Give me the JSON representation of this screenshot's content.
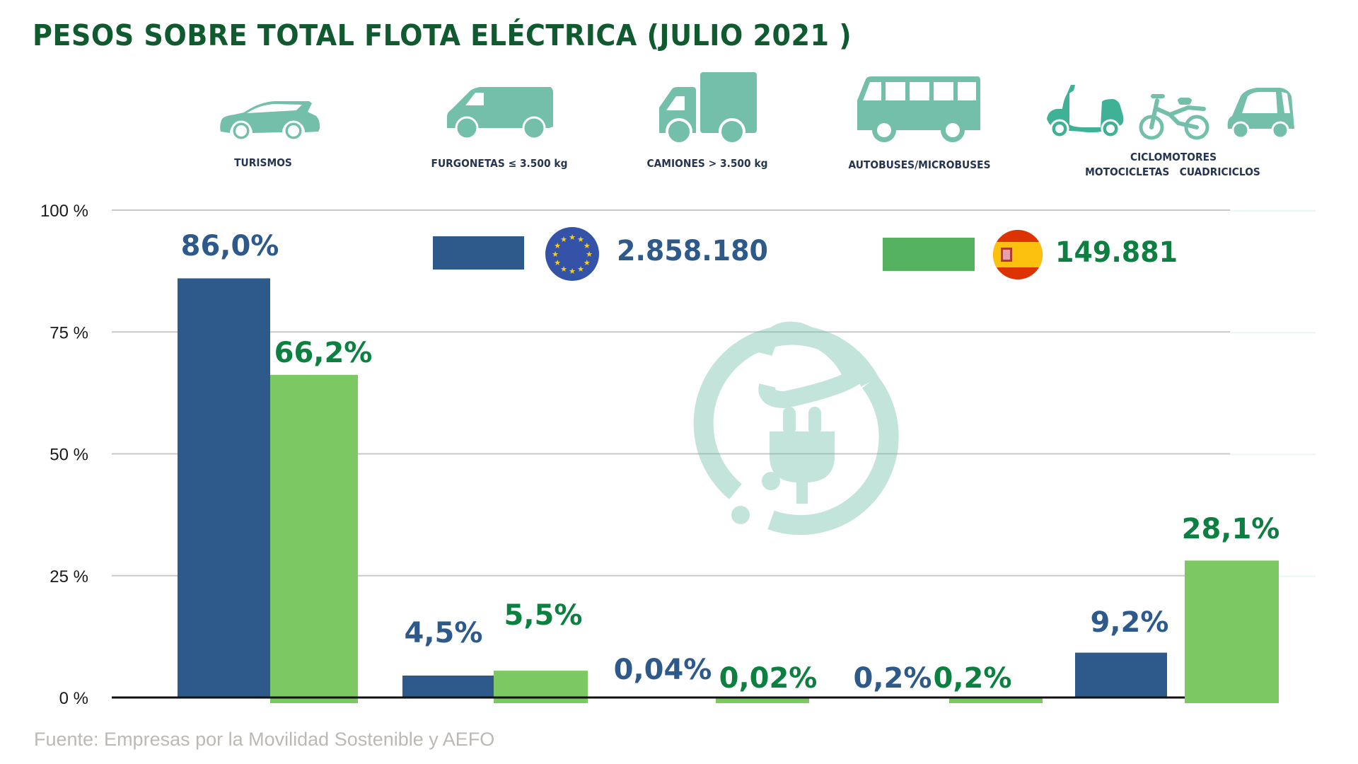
{
  "title": "PESOS SOBRE TOTAL FLOTA ELÉCTRICA (JULIO 2021 )",
  "source": "Fuente: Empresas por la Movilidad Sostenible y AEFO",
  "categories_display": [
    {
      "icon": "car-icon",
      "label_lines": [
        "TURISMOS"
      ]
    },
    {
      "icon": "van-icon",
      "label_lines": [
        "FURGONETAS ≤ 3.500 kg"
      ]
    },
    {
      "icon": "truck-icon",
      "label_lines": [
        "CAMIONES > 3.500 kg"
      ]
    },
    {
      "icon": "bus-icon",
      "label_lines": [
        "AUTOBUSES/MICROBUSES"
      ]
    },
    {
      "icon": "scooter-moped-microcar-icon",
      "label_lines": [
        "CICLOMOTORES",
        "MOTOCICLETAS   CUADRICICLOS"
      ]
    }
  ],
  "legend": [
    {
      "name": "UE",
      "flag": "eu-flag-icon",
      "total": "2.858.180",
      "color": "#2e5a8b",
      "text_color": "#2e5a8b"
    },
    {
      "name": "España",
      "flag": "spain-flag-icon",
      "total": "149.881",
      "color": "#55b260",
      "text_color": "#0c8040"
    }
  ],
  "colors": {
    "eu_bar": "#2e5a8b",
    "es_bar": "#7cc862",
    "eu_label": "#2e5a8b",
    "es_label": "#0c8040",
    "icon": "#73bfa9",
    "title": "#0f5a2e"
  },
  "chart_data": {
    "type": "bar",
    "title": "PESOS SOBRE TOTAL FLOTA ELÉCTRICA (JULIO 2021 )",
    "xlabel": "",
    "ylabel": "",
    "categories": [
      "TURISMOS",
      "FURGONETAS ≤ 3.500 kg",
      "CAMIONES > 3.500 kg",
      "AUTOBUSES/MICROBUSES",
      "CICLOMOTORES / MOTOCICLETAS / CUADRICICLOS"
    ],
    "series": [
      {
        "name": "UE (2.858.180)",
        "values": [
          86.0,
          4.5,
          0.04,
          0.2,
          9.2
        ],
        "labels": [
          "86,0%",
          "4,5%",
          "0,04%",
          "0,2%",
          "9,2%"
        ]
      },
      {
        "name": "España (149.881)",
        "values": [
          66.2,
          5.5,
          0.02,
          0.2,
          28.1
        ],
        "labels": [
          "66,2%",
          "5,5%",
          "0,02%",
          "0,2%",
          "28,1%"
        ]
      }
    ],
    "ylim": [
      0,
      100
    ],
    "yticks": [
      0,
      25,
      50,
      75,
      100
    ],
    "ytick_labels": [
      "0 %",
      "25 %",
      "50 %",
      "75 %",
      "100 %"
    ],
    "grid": true,
    "legend_position": "top-center"
  }
}
